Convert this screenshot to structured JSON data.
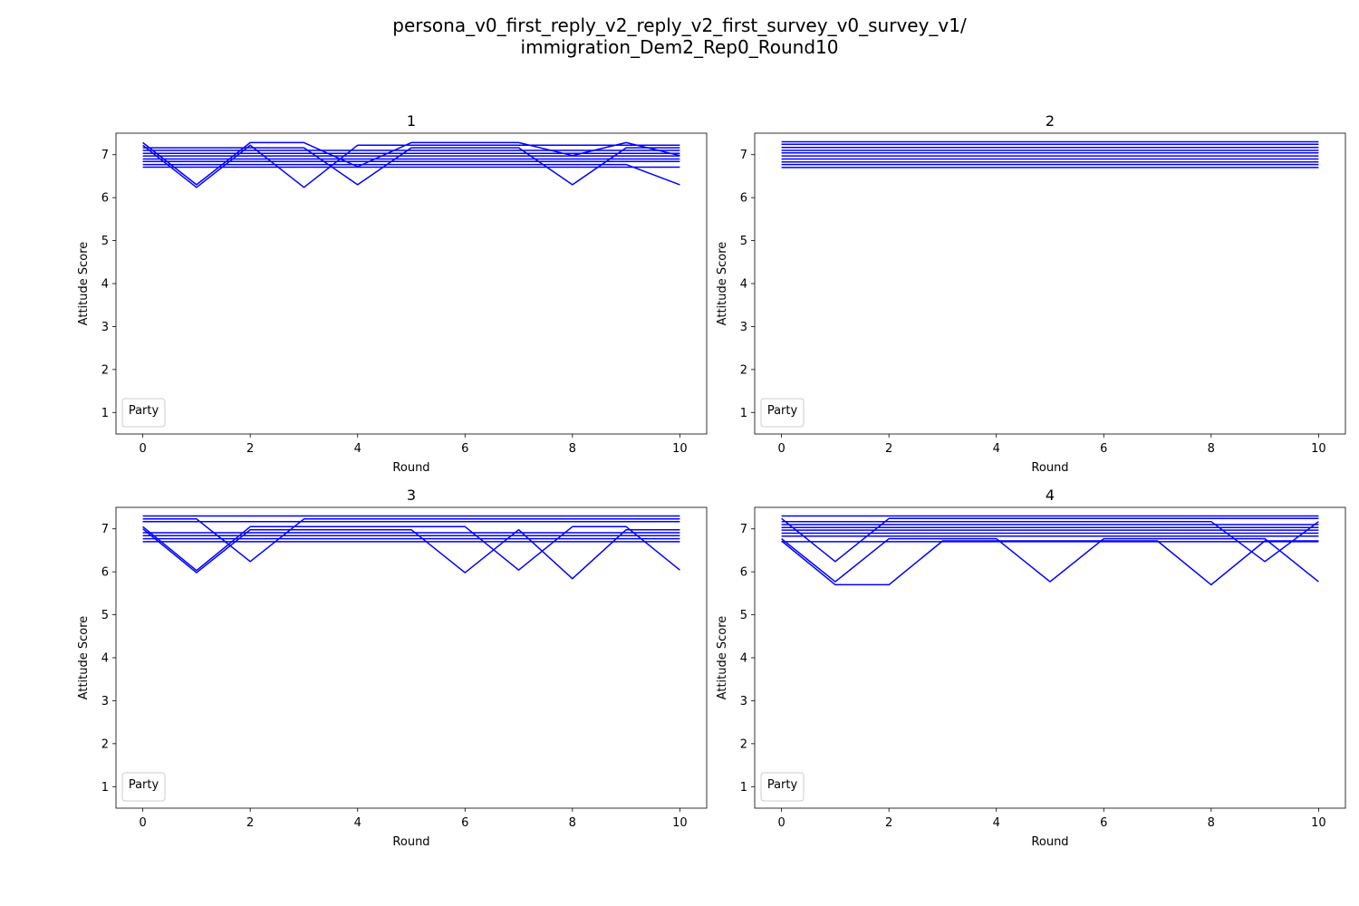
{
  "figure": {
    "title_lines": [
      "persona_v0_first_reply_v2_reply_v2_first_survey_v0_survey_v1/",
      "immigration_Dem2_Rep0_Round10"
    ],
    "line_color": "#0000ff"
  },
  "chart_data": [
    {
      "type": "line",
      "title": "1",
      "xlabel": "Round",
      "ylabel": "Attitude Score",
      "xlim": [
        -0.5,
        10.5
      ],
      "ylim": [
        0.5,
        7.5
      ],
      "xticks": [
        0,
        2,
        4,
        6,
        8,
        10
      ],
      "yticks": [
        1,
        2,
        3,
        4,
        5,
        6,
        7
      ],
      "legend_title": "Party",
      "legend_position": "lower-left",
      "x": [
        0,
        1,
        2,
        3,
        4,
        5,
        6,
        7,
        8,
        9,
        10
      ],
      "series": [
        {
          "values": [
            7.28,
            6.3,
            7.28,
            7.28,
            6.72,
            7.28,
            7.28,
            7.28,
            6.98,
            7.28,
            6.98
          ]
        },
        {
          "values": [
            7.22,
            6.24,
            7.22,
            6.24,
            7.22,
            7.22,
            7.22,
            7.22,
            7.22,
            7.22,
            7.22
          ]
        },
        {
          "values": [
            7.16,
            7.16,
            7.16,
            7.16,
            6.3,
            7.16,
            7.16,
            7.16,
            6.3,
            7.16,
            7.16
          ]
        },
        {
          "values": [
            7.1,
            7.1,
            7.1,
            7.1,
            7.1,
            7.1,
            7.1,
            7.1,
            7.1,
            7.1,
            7.1
          ]
        },
        {
          "values": [
            7.03,
            7.03,
            7.03,
            7.03,
            7.03,
            7.03,
            7.03,
            7.03,
            7.03,
            7.03,
            7.03
          ]
        },
        {
          "values": [
            6.97,
            6.97,
            6.97,
            6.97,
            6.97,
            6.97,
            6.97,
            6.97,
            6.97,
            6.97,
            6.97
          ]
        },
        {
          "values": [
            6.9,
            6.9,
            6.9,
            6.9,
            6.9,
            6.9,
            6.9,
            6.9,
            6.9,
            6.9,
            6.9
          ]
        },
        {
          "values": [
            6.84,
            6.84,
            6.84,
            6.84,
            6.84,
            6.84,
            6.84,
            6.84,
            6.84,
            6.84,
            6.84
          ]
        },
        {
          "values": [
            6.77,
            6.77,
            6.77,
            6.77,
            6.77,
            6.77,
            6.77,
            6.77,
            6.77,
            6.77,
            6.3
          ]
        },
        {
          "values": [
            6.71,
            6.71,
            6.71,
            6.71,
            6.71,
            6.71,
            6.71,
            6.71,
            6.71,
            6.71,
            6.71
          ]
        }
      ]
    },
    {
      "type": "line",
      "title": "2",
      "xlabel": "Round",
      "ylabel": "Attitude Score",
      "xlim": [
        -0.5,
        10.5
      ],
      "ylim": [
        0.5,
        7.5
      ],
      "xticks": [
        0,
        2,
        4,
        6,
        8,
        10
      ],
      "yticks": [
        1,
        2,
        3,
        4,
        5,
        6,
        7
      ],
      "legend_title": "Party",
      "legend_position": "lower-left",
      "x": [
        0,
        1,
        2,
        3,
        4,
        5,
        6,
        7,
        8,
        9,
        10
      ],
      "series": [
        {
          "values": [
            7.3,
            7.3,
            7.3,
            7.3,
            7.3,
            7.3,
            7.3,
            7.3,
            7.3,
            7.3,
            7.3
          ]
        },
        {
          "values": [
            7.24,
            7.24,
            7.24,
            7.24,
            7.24,
            7.24,
            7.24,
            7.24,
            7.24,
            7.24,
            7.24
          ]
        },
        {
          "values": [
            7.17,
            7.17,
            7.17,
            7.17,
            7.17,
            7.17,
            7.17,
            7.17,
            7.17,
            7.17,
            7.17
          ]
        },
        {
          "values": [
            7.1,
            7.1,
            7.1,
            7.1,
            7.1,
            7.1,
            7.1,
            7.1,
            7.1,
            7.1,
            7.1
          ]
        },
        {
          "values": [
            7.04,
            7.04,
            7.04,
            7.04,
            7.04,
            7.04,
            7.04,
            7.04,
            7.04,
            7.04,
            7.04
          ]
        },
        {
          "values": [
            6.97,
            6.97,
            6.97,
            6.97,
            6.97,
            6.97,
            6.97,
            6.97,
            6.97,
            6.97,
            6.97
          ]
        },
        {
          "values": [
            6.9,
            6.9,
            6.9,
            6.9,
            6.9,
            6.9,
            6.9,
            6.9,
            6.9,
            6.9,
            6.9
          ]
        },
        {
          "values": [
            6.83,
            6.83,
            6.83,
            6.83,
            6.83,
            6.83,
            6.83,
            6.83,
            6.83,
            6.83,
            6.83
          ]
        },
        {
          "values": [
            6.77,
            6.77,
            6.77,
            6.77,
            6.77,
            6.77,
            6.77,
            6.77,
            6.77,
            6.77,
            6.77
          ]
        },
        {
          "values": [
            6.7,
            6.7,
            6.7,
            6.7,
            6.7,
            6.7,
            6.7,
            6.7,
            6.7,
            6.7,
            6.7
          ]
        }
      ]
    },
    {
      "type": "line",
      "title": "3",
      "xlabel": "Round",
      "ylabel": "Attitude Score",
      "xlim": [
        -0.5,
        10.5
      ],
      "ylim": [
        0.5,
        7.5
      ],
      "xticks": [
        0,
        2,
        4,
        6,
        8,
        10
      ],
      "yticks": [
        1,
        2,
        3,
        4,
        5,
        6,
        7
      ],
      "legend_title": "Party",
      "legend_position": "lower-left",
      "x": [
        0,
        1,
        2,
        3,
        4,
        5,
        6,
        7,
        8,
        9,
        10
      ],
      "series": [
        {
          "values": [
            7.3,
            7.3,
            7.3,
            7.3,
            7.3,
            7.3,
            7.3,
            7.3,
            7.3,
            7.3,
            7.3
          ]
        },
        {
          "values": [
            7.23,
            7.23,
            6.24,
            7.23,
            7.23,
            7.23,
            7.23,
            7.23,
            7.23,
            7.23,
            7.23
          ]
        },
        {
          "values": [
            7.17,
            7.17,
            7.17,
            7.17,
            7.17,
            7.17,
            7.17,
            7.17,
            7.17,
            7.17,
            7.17
          ]
        },
        {
          "values": [
            7.05,
            6.03,
            7.05,
            7.05,
            7.05,
            7.05,
            7.05,
            6.04,
            7.05,
            7.05,
            6.04
          ]
        },
        {
          "values": [
            7.0,
            5.98,
            6.98,
            6.98,
            6.98,
            6.98,
            5.98,
            6.98,
            5.84,
            6.98,
            6.98
          ]
        },
        {
          "values": [
            6.91,
            6.91,
            6.91,
            6.91,
            6.91,
            6.91,
            6.91,
            6.91,
            6.91,
            6.91,
            6.91
          ]
        },
        {
          "values": [
            6.84,
            6.84,
            6.84,
            6.84,
            6.84,
            6.84,
            6.84,
            6.84,
            6.84,
            6.84,
            6.84
          ]
        },
        {
          "values": [
            6.77,
            6.77,
            6.77,
            6.77,
            6.77,
            6.77,
            6.77,
            6.77,
            6.77,
            6.77,
            6.77
          ]
        },
        {
          "values": [
            6.7,
            6.7,
            6.7,
            6.7,
            6.7,
            6.7,
            6.7,
            6.7,
            6.7,
            6.7,
            6.7
          ]
        }
      ]
    },
    {
      "type": "line",
      "title": "4",
      "xlabel": "Round",
      "ylabel": "Attitude Score",
      "xlim": [
        -0.5,
        10.5
      ],
      "ylim": [
        0.5,
        7.5
      ],
      "xticks": [
        0,
        2,
        4,
        6,
        8,
        10
      ],
      "yticks": [
        1,
        2,
        3,
        4,
        5,
        6,
        7
      ],
      "legend_title": "Party",
      "legend_position": "lower-left",
      "x": [
        0,
        1,
        2,
        3,
        4,
        5,
        6,
        7,
        8,
        9,
        10
      ],
      "series": [
        {
          "values": [
            7.3,
            7.3,
            7.3,
            7.3,
            7.3,
            7.3,
            7.3,
            7.3,
            7.3,
            7.3,
            7.3
          ]
        },
        {
          "values": [
            7.24,
            6.24,
            7.24,
            7.24,
            7.24,
            7.24,
            7.24,
            7.24,
            7.24,
            7.24,
            7.24
          ]
        },
        {
          "values": [
            7.17,
            7.17,
            7.17,
            7.17,
            7.17,
            7.17,
            7.17,
            7.17,
            7.17,
            6.24,
            7.17
          ]
        },
        {
          "values": [
            7.1,
            7.1,
            7.1,
            7.1,
            7.1,
            7.1,
            7.1,
            7.1,
            7.1,
            7.1,
            7.1
          ]
        },
        {
          "values": [
            7.03,
            7.03,
            7.03,
            7.03,
            7.03,
            7.03,
            7.03,
            7.03,
            7.03,
            7.03,
            7.03
          ]
        },
        {
          "values": [
            6.97,
            6.97,
            6.97,
            6.97,
            6.97,
            6.97,
            6.97,
            6.97,
            6.97,
            6.97,
            6.97
          ]
        },
        {
          "values": [
            6.9,
            6.9,
            6.9,
            6.9,
            6.9,
            6.9,
            6.9,
            6.9,
            6.9,
            6.9,
            6.9
          ]
        },
        {
          "values": [
            6.83,
            6.83,
            6.83,
            6.83,
            6.83,
            6.83,
            6.83,
            6.83,
            6.83,
            6.83,
            6.83
          ]
        },
        {
          "values": [
            6.77,
            5.77,
            6.77,
            6.77,
            6.77,
            5.77,
            6.77,
            6.77,
            6.77,
            6.77,
            5.77
          ]
        },
        {
          "values": [
            6.72,
            5.7,
            5.7,
            6.72,
            6.72,
            6.72,
            6.72,
            6.72,
            5.7,
            6.72,
            6.72
          ]
        },
        {
          "values": [
            6.7,
            6.7,
            6.7,
            6.7,
            6.7,
            6.7,
            6.7,
            6.7,
            6.7,
            6.7,
            6.7
          ]
        }
      ]
    }
  ]
}
